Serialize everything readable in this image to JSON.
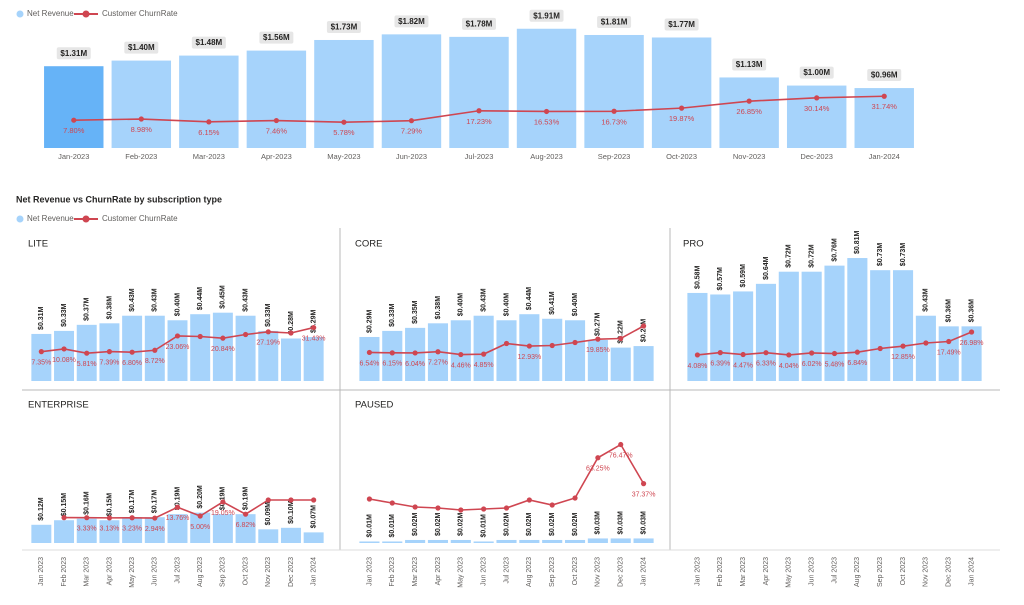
{
  "chart_data": [
    {
      "type": "combo",
      "categories": [
        "Jan-2023",
        "Feb-2023",
        "Mar-2023",
        "Apr-2023",
        "May-2023",
        "Jun-2023",
        "Jul-2023",
        "Aug-2023",
        "Sep-2023",
        "Oct-2023",
        "Nov-2023",
        "Dec-2023",
        "Jan-2024"
      ],
      "selected": 0,
      "selected_color": "#66b3f7",
      "series": [
        {
          "name": "Net Revenue",
          "color": "#a6d3fb",
          "values": [
            1.31,
            1.4,
            1.48,
            1.56,
            1.73,
            1.82,
            1.78,
            1.91,
            1.81,
            1.77,
            1.13,
            1.0,
            0.96
          ],
          "value_labels": [
            "$1.31M",
            "$1.40M",
            "$1.48M",
            "$1.56M",
            "$1.73M",
            "$1.82M",
            "$1.78M",
            "$1.91M",
            "$1.81M",
            "$1.77M",
            "$1.13M",
            "$1.00M",
            "$0.96M"
          ]
        },
        {
          "name": "Customer ChurnRate",
          "color": "#cf4651",
          "axis": "y2",
          "values": [
            7.8,
            8.98,
            6.15,
            7.46,
            5.78,
            7.29,
            17.23,
            16.53,
            16.73,
            19.87,
            26.85,
            30.14,
            31.74
          ],
          "value_labels": [
            "7.80%",
            "8.98%",
            "6.15%",
            "7.46%",
            "5.78%",
            "7.29%",
            "17.23%",
            "16.53%",
            "16.73%",
            "19.87%",
            "26.85%",
            "30.14%",
            "31.74%"
          ]
        }
      ],
      "ylim": [
        0,
        1.97
      ],
      "y2lim": [
        -20,
        103
      ]
    },
    {
      "type": "small-multiples",
      "title": "Net Revenue vs ChurnRate by subscription type",
      "categories": [
        "Jan 2023",
        "Feb 2023",
        "Mar 2023",
        "Apr 2023",
        "May 2023",
        "Jun 2023",
        "Jul 2023",
        "Aug 2023",
        "Sep 2023",
        "Oct 2023",
        "Nov 2023",
        "Dec 2023",
        "Jan 2024"
      ],
      "series": [
        {
          "name": "Net Revenue",
          "color": "#a6d3fb"
        },
        {
          "name": "Customer ChurnRate",
          "color": "#cf4651",
          "axis": "y2"
        }
      ],
      "ylim": [
        0,
        0.83
      ],
      "y2lim": [
        -22,
        104
      ],
      "panels": [
        {
          "title": "LITE",
          "revenue": {
            "values": [
              0.31,
              0.33,
              0.37,
              0.38,
              0.43,
              0.43,
              0.4,
              0.44,
              0.45,
              0.43,
              0.33,
              0.28,
              0.29
            ],
            "value_labels": [
              "$0.31M",
              "$0.33M",
              "$0.37M",
              "$0.38M",
              "$0.43M",
              "$0.43M",
              "$0.40M",
              "$0.44M",
              "$0.45M",
              "$0.43M",
              "$0.33M",
              "$0.28M",
              "$0.29M"
            ]
          },
          "churn": {
            "values": [
              7.35,
              10.08,
              5.81,
              7.39,
              6.8,
              8.72,
              23.06,
              22.5,
              20.84,
              24.5,
              27.19,
              26.0,
              31.43
            ],
            "value_labels": [
              "7.35%",
              "10.08%",
              "5.81%",
              "7.39%",
              "6.80%",
              "8.72%",
              "23.06%",
              null,
              "20.84%",
              null,
              "27.19%",
              null,
              "31.43%"
            ]
          }
        },
        {
          "title": "CORE",
          "revenue": {
            "values": [
              0.29,
              0.33,
              0.35,
              0.38,
              0.4,
              0.43,
              0.4,
              0.44,
              0.41,
              0.4,
              0.27,
              0.22,
              0.23
            ],
            "value_labels": [
              "$0.29M",
              "$0.33M",
              "$0.35M",
              "$0.38M",
              "$0.40M",
              "$0.43M",
              "$0.40M",
              "$0.44M",
              "$0.41M",
              "$0.40M",
              "$0.27M",
              "$0.22M",
              "$0.23M"
            ]
          },
          "churn": {
            "values": [
              6.54,
              6.15,
              6.04,
              7.27,
              4.46,
              4.85,
              15.5,
              12.93,
              13.5,
              16.5,
              19.85,
              20.5,
              33.0
            ],
            "value_labels": [
              "6.54%",
              "6.15%",
              "6.04%",
              "7.27%",
              "4.46%",
              "4.85%",
              null,
              "12.93%",
              null,
              null,
              "19.85%",
              null,
              null
            ]
          }
        },
        {
          "title": "PRO",
          "revenue": {
            "values": [
              0.58,
              0.57,
              0.59,
              0.64,
              0.72,
              0.72,
              0.76,
              0.81,
              0.73,
              0.73,
              0.43,
              0.36,
              0.36
            ],
            "value_labels": [
              "$0.58M",
              "$0.57M",
              "$0.59M",
              "$0.64M",
              "$0.72M",
              "$0.72M",
              "$0.76M",
              "$0.81M",
              "$0.73M",
              "$0.73M",
              "$0.43M",
              "$0.36M",
              "$0.36M"
            ]
          },
          "churn": {
            "values": [
              4.08,
              6.39,
              4.47,
              6.33,
              4.04,
              6.02,
              5.48,
              6.84,
              10.5,
              12.85,
              16.0,
              17.49,
              26.98
            ],
            "value_labels": [
              "4.08%",
              "6.39%",
              "4.47%",
              "6.33%",
              "4.04%",
              "6.02%",
              "5.48%",
              "6.84%",
              null,
              "12.85%",
              null,
              "17.49%",
              "26.98%"
            ]
          }
        },
        {
          "title": "ENTERPRISE",
          "revenue": {
            "values": [
              0.12,
              0.15,
              0.16,
              0.15,
              0.17,
              0.17,
              0.19,
              0.2,
              0.19,
              0.19,
              0.09,
              0.1,
              0.07
            ],
            "value_labels": [
              "$0.12M",
              "$0.15M",
              "$0.16M",
              "$0.15M",
              "$0.17M",
              "$0.17M",
              "$0.19M",
              "$0.20M",
              "$0.19M",
              "$0.19M",
              "$0.09M",
              "$0.10M",
              "$0.07M"
            ]
          },
          "churn": {
            "values": [
              null,
              3.4,
              3.33,
              3.13,
              3.23,
              2.94,
              13.76,
              5.0,
              19.05,
              6.82,
              21.0,
              21.0,
              21.0
            ],
            "value_labels": [
              null,
              null,
              "3.33%",
              "3.13%",
              "3.23%",
              "2.94%",
              "13.76%",
              "5.00%",
              "19.05%",
              "6.82%",
              null,
              null,
              null
            ]
          }
        },
        {
          "title": "PAUSED",
          "revenue": {
            "values": [
              0.01,
              0.01,
              0.02,
              0.02,
              0.02,
              0.01,
              0.02,
              0.02,
              0.02,
              0.02,
              0.03,
              0.03,
              0.03
            ],
            "value_labels": [
              "$0.01M",
              "$0.01M",
              "$0.02M",
              "$0.02M",
              "$0.02M",
              "$0.01M",
              "$0.02M",
              "$0.02M",
              "$0.02M",
              "$0.02M",
              "$0.03M",
              "$0.03M",
              "$0.03M"
            ]
          },
          "churn": {
            "values": [
              22,
              18,
              14,
              13,
              11,
              12,
              13,
              21,
              16,
              23,
              63.25,
              76.47,
              37.37
            ],
            "value_labels": [
              null,
              null,
              null,
              null,
              null,
              null,
              null,
              null,
              null,
              null,
              "63.25%",
              "76.47%",
              "37.37%"
            ]
          }
        }
      ]
    }
  ]
}
